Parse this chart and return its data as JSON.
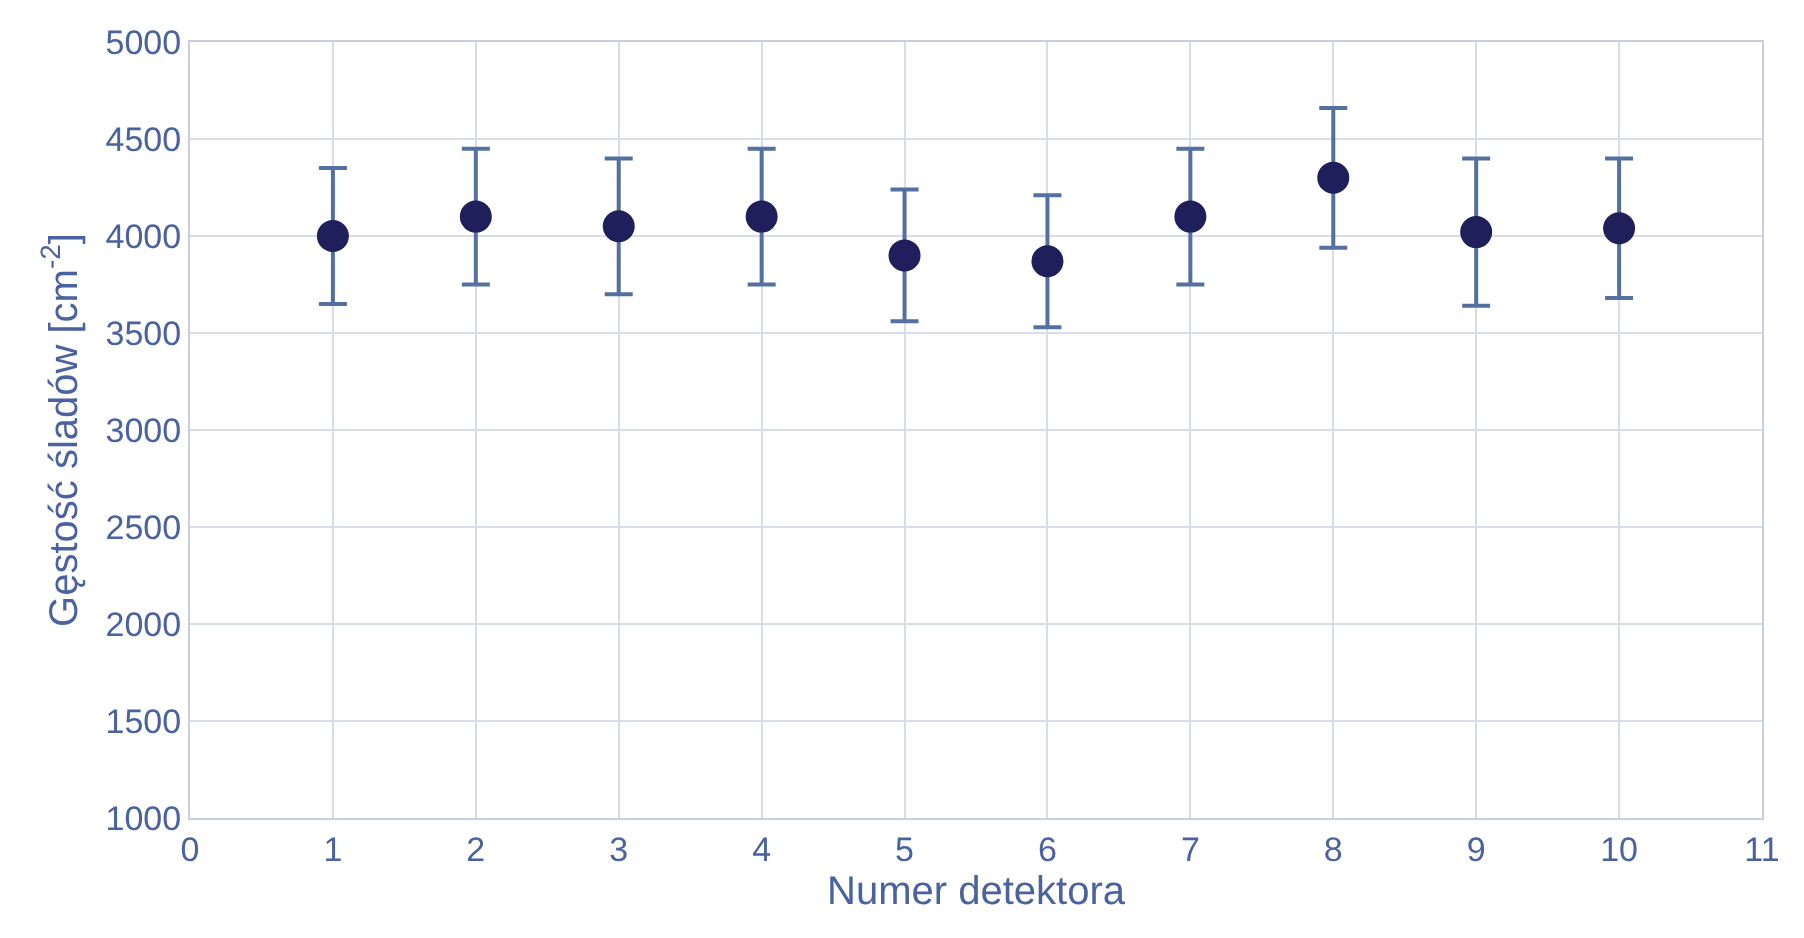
{
  "chart_data": {
    "type": "scatter",
    "xlabel": "Numer detektora",
    "ylabel": "Gęstość śladów [cm$^{-2}$]",
    "x": [
      1,
      2,
      3,
      4,
      5,
      6,
      7,
      8,
      9,
      10
    ],
    "series": [
      {
        "color": "#1f1f5c",
        "values": [
          4000,
          4100,
          4050,
          4100,
          3900,
          3870,
          4100,
          4300,
          4020,
          4040
        ],
        "errors": [
          350,
          350,
          350,
          350,
          340,
          340,
          350,
          360,
          380,
          360
        ]
      }
    ],
    "xlim": [
      0,
      11
    ],
    "xticks": [
      0,
      1,
      2,
      3,
      4,
      5,
      6,
      7,
      8,
      9,
      10,
      11
    ],
    "ylim": [
      1000,
      5000
    ],
    "yticks": [
      1000,
      1500,
      2000,
      2500,
      3000,
      3500,
      4000,
      4500,
      5000
    ],
    "grid": true,
    "marker": "circle"
  }
}
